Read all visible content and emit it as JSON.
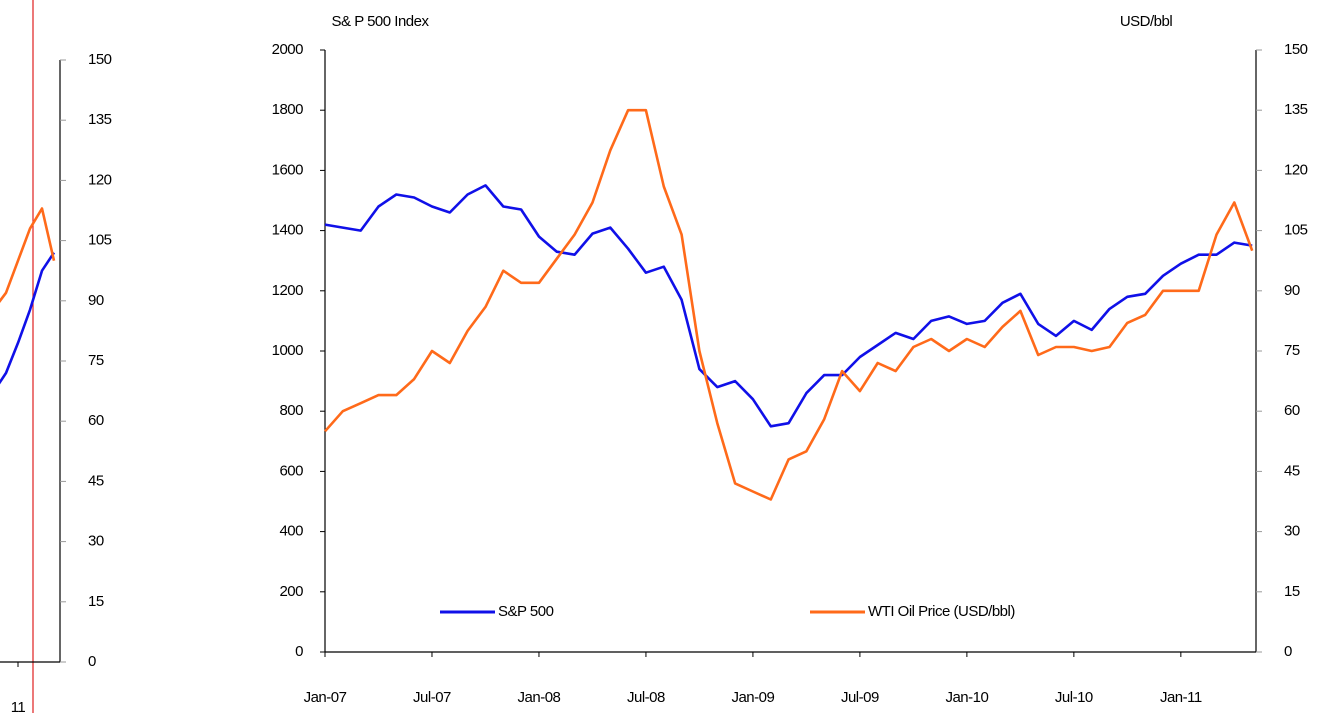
{
  "chart_data": [
    {
      "type": "line",
      "y_axis_title": "S& P 500 Index",
      "y2_axis_title": "USD/bbl",
      "categories": [
        "Jan-07",
        null,
        null,
        null,
        null,
        null,
        "Jul-07",
        null,
        null,
        null,
        null,
        null,
        "Jan-08",
        null,
        null,
        null,
        null,
        null,
        "Jul-08",
        null,
        null,
        null,
        null,
        null,
        "Jan-09",
        null,
        null,
        null,
        null,
        null,
        "Jul-09",
        null,
        null,
        null,
        null,
        null,
        "Jan-10",
        null,
        null,
        null,
        null,
        null,
        "Jul-10",
        null,
        null,
        null,
        null,
        null,
        "Jan-11",
        null,
        null,
        null,
        null
      ],
      "ylim": [
        0,
        2000
      ],
      "yticks": [
        0,
        200,
        400,
        600,
        800,
        1000,
        1200,
        1400,
        1600,
        1800,
        2000
      ],
      "y2lim": [
        0,
        150
      ],
      "y2ticks": [
        0,
        15,
        30,
        45,
        60,
        75,
        90,
        105,
        120,
        135,
        150
      ],
      "legend": "bottom",
      "series": [
        {
          "name": "S&P 500",
          "color": "#1010e8",
          "values": [
            1420,
            1410,
            1400,
            1480,
            1520,
            1510,
            1480,
            1460,
            1520,
            1550,
            1480,
            1470,
            1380,
            1330,
            1320,
            1390,
            1410,
            1340,
            1260,
            1280,
            1170,
            940,
            880,
            900,
            840,
            750,
            760,
            860,
            920,
            920,
            980,
            1020,
            1060,
            1040,
            1100,
            1115,
            1090,
            1100,
            1160,
            1190,
            1090,
            1050,
            1100,
            1070,
            1140,
            1180,
            1190,
            1250,
            1290,
            1320,
            1320,
            1360,
            1350
          ]
        },
        {
          "name": "WTI Oil Price (USD/bbl)",
          "color": "#ff6a1a",
          "axis": "y2",
          "values": [
            55,
            60,
            62,
            64,
            64,
            68,
            75,
            72,
            80,
            86,
            95,
            92,
            92,
            98,
            104,
            112,
            125,
            135,
            135,
            116,
            104,
            75,
            57,
            42,
            40,
            38,
            48,
            50,
            58,
            70,
            65,
            72,
            70,
            76,
            78,
            75,
            78,
            76,
            81,
            85,
            74,
            76,
            76,
            75,
            76,
            82,
            84,
            90,
            90,
            90,
            104,
            112,
            100
          ]
        }
      ]
    },
    {
      "type": "line",
      "categories": [
        null,
        null,
        "11",
        null,
        null,
        null
      ],
      "ylim": [
        0,
        2000
      ],
      "y2lim": [
        0,
        150
      ],
      "y2ticks": [
        0,
        15,
        30,
        45,
        60,
        75,
        90,
        105,
        120,
        135,
        150
      ],
      "series": [
        {
          "color": "#1010e8",
          "values": [
            900,
            960,
            1060,
            1170,
            1300,
            1360
          ]
        },
        {
          "color": "#ff6a1a",
          "axis": "y2",
          "values": [
            88,
            92,
            100,
            108,
            113,
            100
          ]
        }
      ]
    }
  ]
}
